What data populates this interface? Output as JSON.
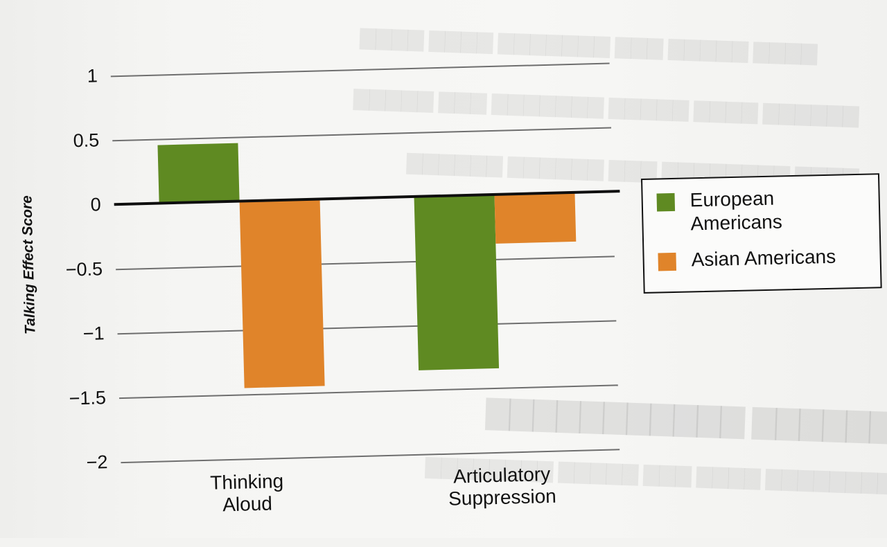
{
  "chart_data": {
    "type": "bar",
    "title": "",
    "xlabel": "",
    "ylabel": "Talking Effect Score",
    "ylim": [
      -2,
      1
    ],
    "yticks": [
      1,
      0.5,
      0,
      -0.5,
      -1,
      -1.5,
      -2
    ],
    "ytick_labels": [
      "1",
      "0.5",
      "0",
      "−0.5",
      "−1",
      "−1.5",
      "−2"
    ],
    "categories": [
      "Thinking Aloud",
      "Articulatory Suppression"
    ],
    "category_lines": [
      [
        "Thinking",
        "Aloud"
      ],
      [
        "Articulatory",
        "Suppression"
      ]
    ],
    "series": [
      {
        "name": "European Americans",
        "color": "#5f8a22",
        "values": [
          0.45,
          -1.35
        ]
      },
      {
        "name": "Asian Americans",
        "color": "#e0842a",
        "values": [
          -1.45,
          -0.38
        ]
      }
    ],
    "grid": true,
    "legend_position": "right",
    "legend": [
      {
        "lines": [
          "European",
          "Americans"
        ],
        "color": "#5f8a22"
      },
      {
        "lines": [
          "Asian Americans"
        ],
        "color": "#e0842a"
      }
    ]
  }
}
